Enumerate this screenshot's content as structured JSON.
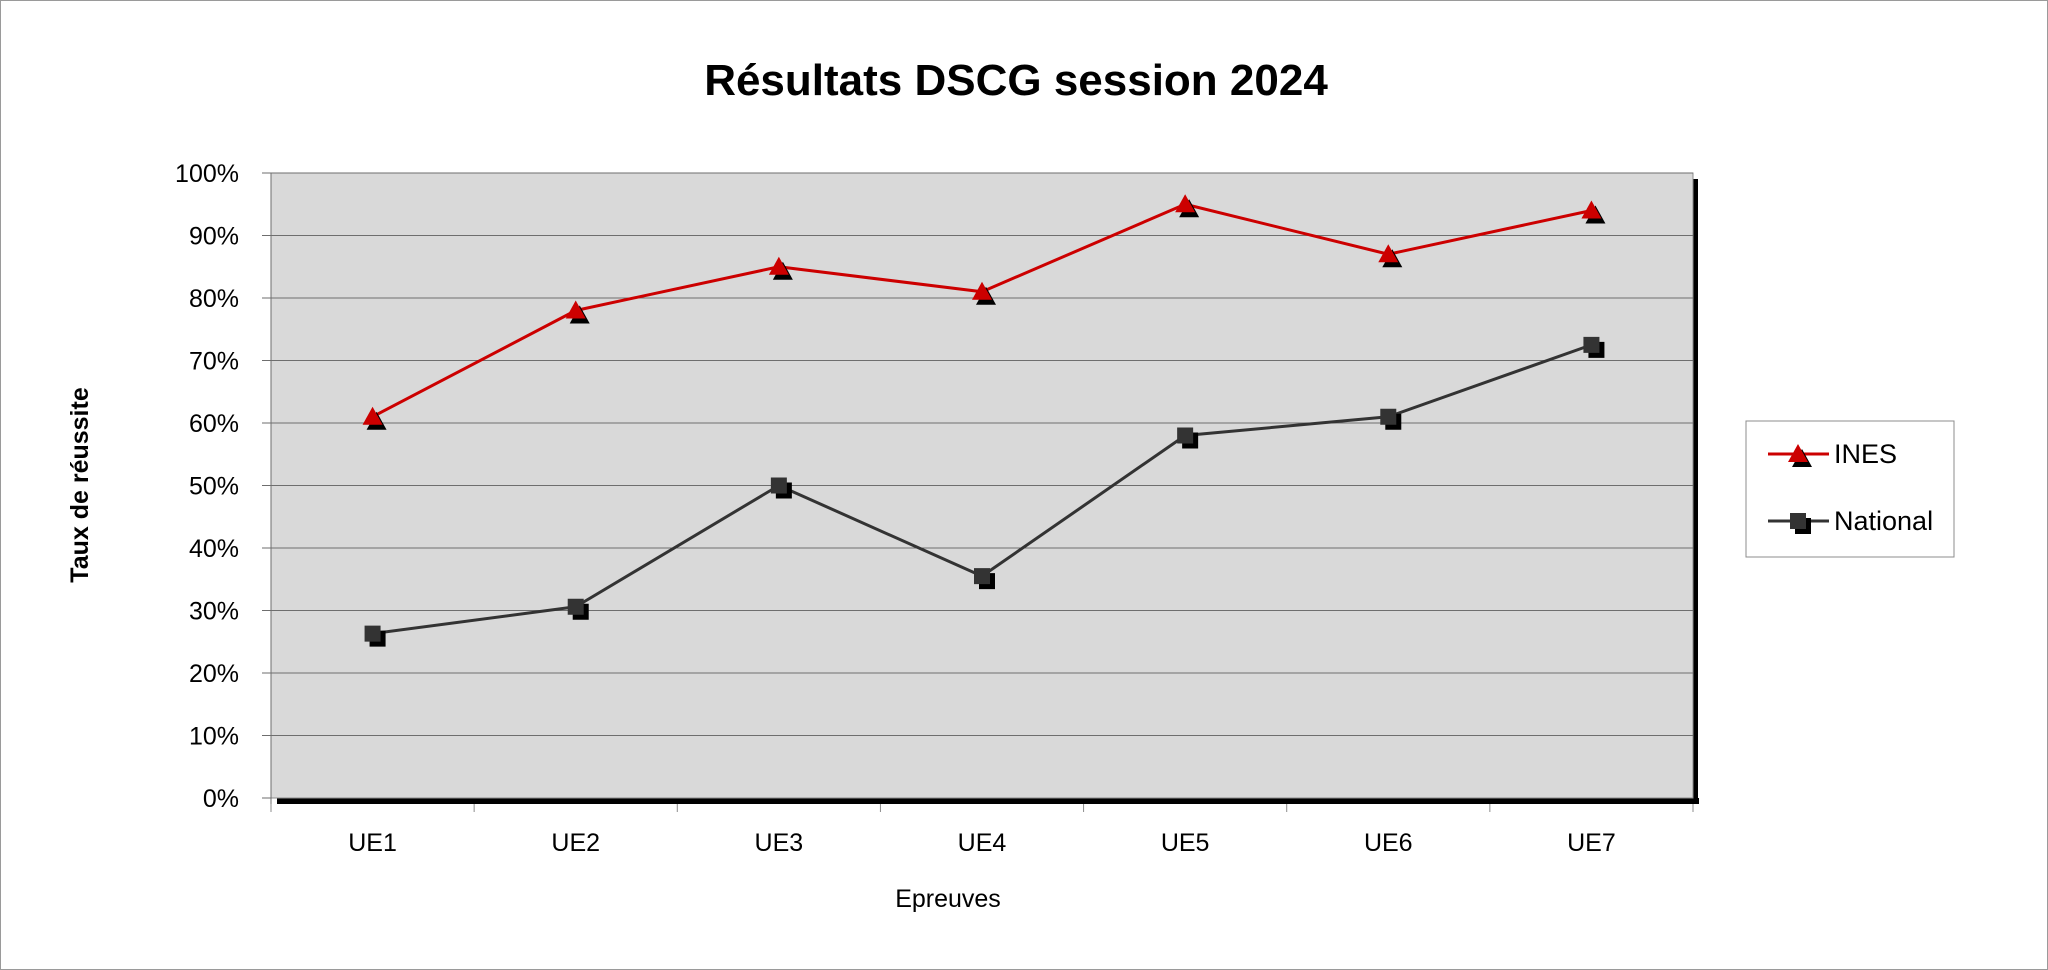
{
  "chart_data": {
    "type": "line",
    "title": "Résultats DSCG session 2024",
    "xlabel": "Epreuves",
    "ylabel": "Taux de réussite",
    "categories": [
      "UE1",
      "UE2",
      "UE3",
      "UE4",
      "UE5",
      "UE6",
      "UE7"
    ],
    "ylim": [
      0,
      100
    ],
    "ytick_step": 10,
    "ytick_labels": [
      "0%",
      "10%",
      "20%",
      "30%",
      "40%",
      "50%",
      "60%",
      "70%",
      "80%",
      "90%",
      "100%"
    ],
    "grid": true,
    "legend_position": "right",
    "plot_background": "#d9d9d9",
    "series": [
      {
        "name": "INES",
        "values": [
          61,
          78,
          85,
          81,
          95,
          87,
          94
        ],
        "color": "#cc0000",
        "marker": "triangle"
      },
      {
        "name": "National",
        "values": [
          26.3,
          30.6,
          50,
          35.5,
          58,
          61,
          72.5
        ],
        "color": "#333333",
        "marker": "square"
      }
    ]
  }
}
